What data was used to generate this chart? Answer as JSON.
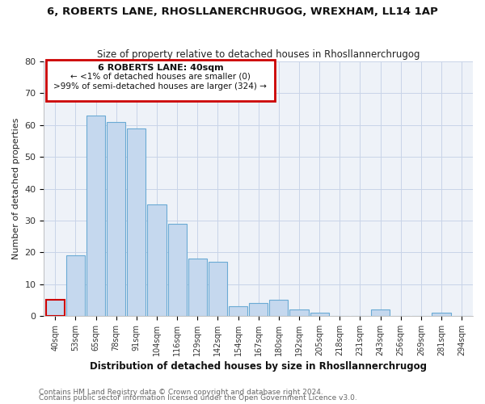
{
  "title1": "6, ROBERTS LANE, RHOSLLANERCHRUGOG, WREXHAM, LL14 1AP",
  "title2": "Size of property relative to detached houses in Rhosllannerchrugog",
  "xlabel": "Distribution of detached houses by size in Rhosllannerchrugog",
  "ylabel": "Number of detached properties",
  "bar_labels": [
    "40sqm",
    "53sqm",
    "65sqm",
    "78sqm",
    "91sqm",
    "104sqm",
    "116sqm",
    "129sqm",
    "142sqm",
    "154sqm",
    "167sqm",
    "180sqm",
    "192sqm",
    "205sqm",
    "218sqm",
    "231sqm",
    "243sqm",
    "256sqm",
    "269sqm",
    "281sqm",
    "294sqm"
  ],
  "bar_values": [
    5,
    19,
    63,
    61,
    59,
    35,
    29,
    18,
    17,
    3,
    4,
    5,
    2,
    1,
    0,
    0,
    2,
    0,
    0,
    1,
    0
  ],
  "bar_color": "#c5d8ee",
  "bar_edge_color": "#6aaad4",
  "highlight_index": 0,
  "highlight_edge_color": "#cc0000",
  "ylim": [
    0,
    80
  ],
  "yticks": [
    0,
    10,
    20,
    30,
    40,
    50,
    60,
    70,
    80
  ],
  "annotation_title": "6 ROBERTS LANE: 40sqm",
  "annotation_line1": "← <1% of detached houses are smaller (0)",
  "annotation_line2": ">99% of semi-detached houses are larger (324) →",
  "annotation_box_color": "#ffffff",
  "annotation_box_edge": "#cc0000",
  "footer1": "Contains HM Land Registry data © Crown copyright and database right 2024.",
  "footer2": "Contains public sector information licensed under the Open Government Licence v3.0.",
  "grid_color": "#c8d4e8",
  "background_color": "#ffffff",
  "plot_bg_color": "#eef2f8"
}
